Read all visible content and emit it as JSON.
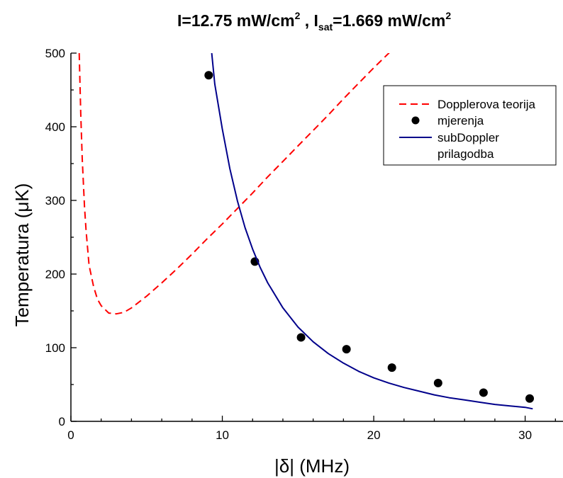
{
  "chart_data": {
    "type": "scatter",
    "title": {
      "prefix": "I=12.75 mW/cm",
      "sup1": "2",
      "middle": " , I",
      "sub": "sat",
      "suffix": "=1.669 mW/cm",
      "sup2": "2"
    },
    "xlabel": "|δ| (MHz)",
    "ylabel": "Temperatura (μK)",
    "xlim": [
      0,
      32.5
    ],
    "ylim": [
      0,
      500
    ],
    "x_ticks": [
      0,
      10,
      20,
      30
    ],
    "y_ticks": [
      0,
      100,
      200,
      300,
      400,
      500
    ],
    "grid": false,
    "legend_position": "top-right",
    "series": [
      {
        "name": "Dopplerova teorija",
        "kind": "dashed-line",
        "color": "#ff0000",
        "x": [
          0.55,
          0.65,
          0.75,
          0.9,
          1.0,
          1.2,
          1.5,
          1.75,
          2.0,
          2.5,
          3.0,
          3.5,
          4.0,
          5.0,
          6.0,
          7.0,
          8.0,
          9.0,
          10.0,
          11.0,
          12.0,
          13.0,
          14.0,
          15.0,
          16.0,
          17.0,
          18.0,
          19.0,
          20.0,
          21.0,
          22.0
        ],
        "y": [
          500,
          417,
          356,
          291,
          259,
          212,
          183,
          166,
          157,
          147,
          146,
          148,
          154,
          170,
          188,
          207,
          227,
          248,
          268,
          289,
          310,
          332,
          353,
          374,
          395,
          416,
          438,
          459,
          480,
          500,
          522
        ]
      },
      {
        "name": "mjerenja",
        "kind": "markers",
        "color": "#000000",
        "x": [
          9.1,
          12.15,
          15.2,
          18.2,
          21.2,
          24.25,
          27.25,
          30.3
        ],
        "y": [
          470,
          217,
          114,
          98,
          73,
          52,
          39,
          31
        ]
      },
      {
        "name": "subDoppler\n prilagodba",
        "legend_lines": [
          "subDoppler",
          " prilagodba"
        ],
        "kind": "solid-line",
        "color": "#00008b",
        "x": [
          9.3,
          9.5,
          10.0,
          10.5,
          11.0,
          11.5,
          12.0,
          12.5,
          13.0,
          14.0,
          15.0,
          16.0,
          17.0,
          18.0,
          19.0,
          20.0,
          21.0,
          22.0,
          23.0,
          24.0,
          25.0,
          26.0,
          27.0,
          28.0,
          29.0,
          30.0,
          30.5
        ],
        "y": [
          500,
          458,
          397,
          343,
          299,
          263,
          234,
          209,
          188,
          154,
          128,
          108,
          92,
          79,
          68,
          59,
          52,
          46,
          41,
          36,
          32,
          29,
          26,
          23,
          21,
          19,
          17
        ]
      }
    ]
  }
}
